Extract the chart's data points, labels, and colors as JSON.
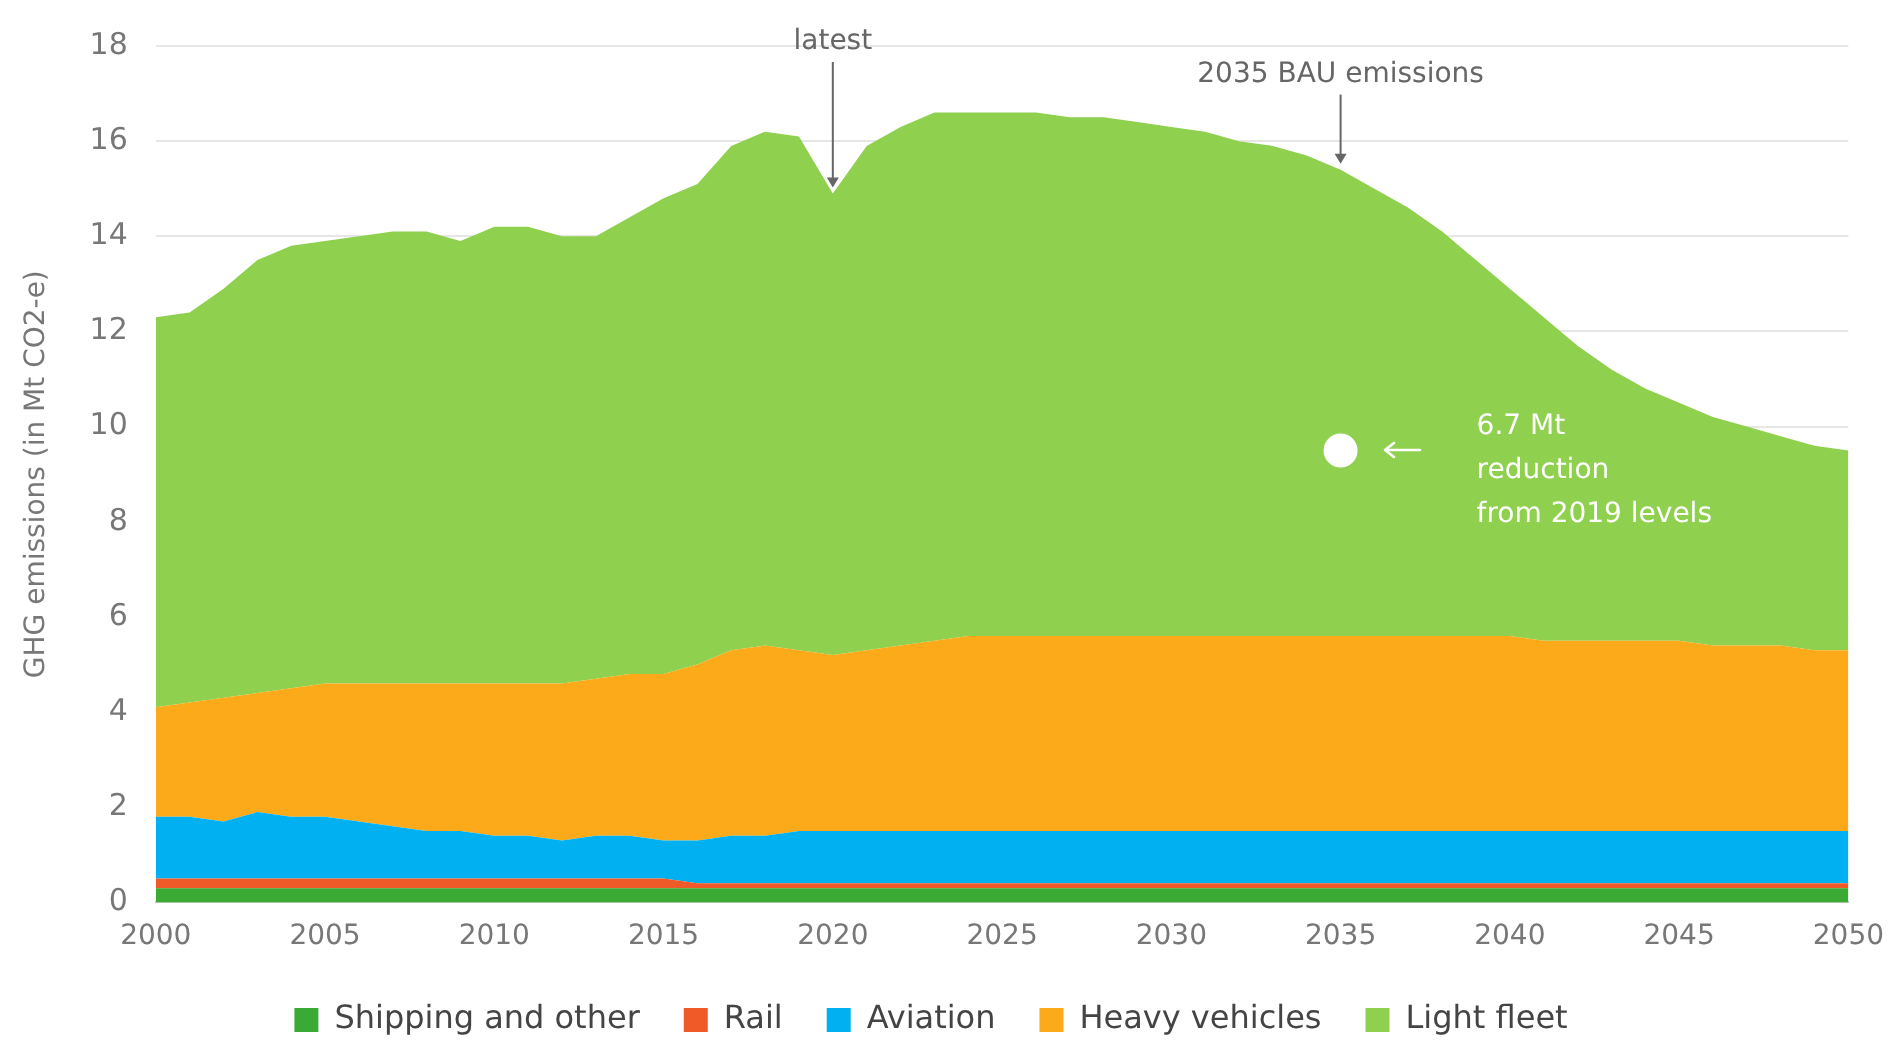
{
  "chart_data": {
    "type": "area",
    "stacked": true,
    "ylabel": "GHG emissions (in Mt CO2-e)",
    "x": [
      2000,
      2001,
      2002,
      2003,
      2004,
      2005,
      2006,
      2007,
      2008,
      2009,
      2010,
      2011,
      2012,
      2013,
      2014,
      2015,
      2016,
      2017,
      2018,
      2019,
      2020,
      2021,
      2022,
      2023,
      2024,
      2025,
      2026,
      2027,
      2028,
      2029,
      2030,
      2031,
      2032,
      2033,
      2034,
      2035,
      2036,
      2037,
      2038,
      2039,
      2040,
      2041,
      2042,
      2043,
      2044,
      2045,
      2046,
      2047,
      2048,
      2049,
      2050
    ],
    "xlim": [
      2000,
      2050
    ],
    "xticks": [
      2000,
      2005,
      2010,
      2015,
      2020,
      2025,
      2030,
      2035,
      2040,
      2045,
      2050
    ],
    "ylim": [
      0,
      18
    ],
    "yticks": [
      0,
      2,
      4,
      6,
      8,
      10,
      12,
      14,
      16,
      18
    ],
    "grid": "y",
    "legend": "bottom",
    "series": [
      {
        "name": "Shipping and other",
        "color": "#3aaa35",
        "values": [
          0.3,
          0.3,
          0.3,
          0.3,
          0.3,
          0.3,
          0.3,
          0.3,
          0.3,
          0.3,
          0.3,
          0.3,
          0.3,
          0.3,
          0.3,
          0.3,
          0.3,
          0.3,
          0.3,
          0.3,
          0.3,
          0.3,
          0.3,
          0.3,
          0.3,
          0.3,
          0.3,
          0.3,
          0.3,
          0.3,
          0.3,
          0.3,
          0.3,
          0.3,
          0.3,
          0.3,
          0.3,
          0.3,
          0.3,
          0.3,
          0.3,
          0.3,
          0.3,
          0.3,
          0.3,
          0.3,
          0.3,
          0.3,
          0.3,
          0.3,
          0.3
        ]
      },
      {
        "name": "Rail",
        "color": "#f05a28",
        "values": [
          0.2,
          0.2,
          0.2,
          0.2,
          0.2,
          0.2,
          0.2,
          0.2,
          0.2,
          0.2,
          0.2,
          0.2,
          0.2,
          0.2,
          0.2,
          0.2,
          0.1,
          0.1,
          0.1,
          0.1,
          0.1,
          0.1,
          0.1,
          0.1,
          0.1,
          0.1,
          0.1,
          0.1,
          0.1,
          0.1,
          0.1,
          0.1,
          0.1,
          0.1,
          0.1,
          0.1,
          0.1,
          0.1,
          0.1,
          0.1,
          0.1,
          0.1,
          0.1,
          0.1,
          0.1,
          0.1,
          0.1,
          0.1,
          0.1,
          0.1,
          0.1
        ]
      },
      {
        "name": "Aviation",
        "color": "#00b0f0",
        "values": [
          1.3,
          1.3,
          1.2,
          1.4,
          1.3,
          1.3,
          1.2,
          1.1,
          1.0,
          1.0,
          0.9,
          0.9,
          0.8,
          0.9,
          0.9,
          0.8,
          0.9,
          1.0,
          1.0,
          1.1,
          1.1,
          1.1,
          1.1,
          1.1,
          1.1,
          1.1,
          1.1,
          1.1,
          1.1,
          1.1,
          1.1,
          1.1,
          1.1,
          1.1,
          1.1,
          1.1,
          1.1,
          1.1,
          1.1,
          1.1,
          1.1,
          1.1,
          1.1,
          1.1,
          1.1,
          1.1,
          1.1,
          1.1,
          1.1,
          1.1,
          1.1
        ]
      },
      {
        "name": "Heavy vehicles",
        "color": "#fcaa1a",
        "values": [
          2.3,
          2.4,
          2.6,
          2.5,
          2.7,
          2.8,
          2.9,
          3.0,
          3.1,
          3.1,
          3.2,
          3.2,
          3.3,
          3.3,
          3.4,
          3.5,
          3.7,
          3.9,
          4.0,
          3.8,
          3.7,
          3.8,
          3.9,
          4.0,
          4.1,
          4.1,
          4.1,
          4.1,
          4.1,
          4.1,
          4.1,
          4.1,
          4.1,
          4.1,
          4.1,
          4.1,
          4.1,
          4.1,
          4.1,
          4.1,
          4.1,
          4.0,
          4.0,
          4.0,
          4.0,
          4.0,
          3.9,
          3.9,
          3.9,
          3.8,
          3.8
        ]
      },
      {
        "name": "Light fleet",
        "color": "#8fd14f",
        "values": [
          8.2,
          8.2,
          8.6,
          9.1,
          9.3,
          9.3,
          9.4,
          9.5,
          9.5,
          9.3,
          9.6,
          9.6,
          9.4,
          9.3,
          9.6,
          10.0,
          10.1,
          10.6,
          10.8,
          10.8,
          9.7,
          10.6,
          10.9,
          11.1,
          11.0,
          11.0,
          11.0,
          10.9,
          10.9,
          10.8,
          10.7,
          10.6,
          10.4,
          10.3,
          10.1,
          9.8,
          9.4,
          9.0,
          8.5,
          7.9,
          7.3,
          6.8,
          6.2,
          5.7,
          5.3,
          5.0,
          4.8,
          4.6,
          4.4,
          4.3,
          4.2
        ]
      },
      {
        "type": "scatter",
        "color": "#ffffff",
        "x": [
          2035
        ],
        "values": [
          9.5
        ]
      }
    ],
    "annotations": [
      {
        "text": "latest",
        "x": 2020,
        "y": 14.9
      },
      {
        "text": "2035 BAU emissions",
        "x": 2035,
        "y": 15.4
      },
      "6.7 Mt\nreduction\nfrom 2019 levels"
    ]
  }
}
